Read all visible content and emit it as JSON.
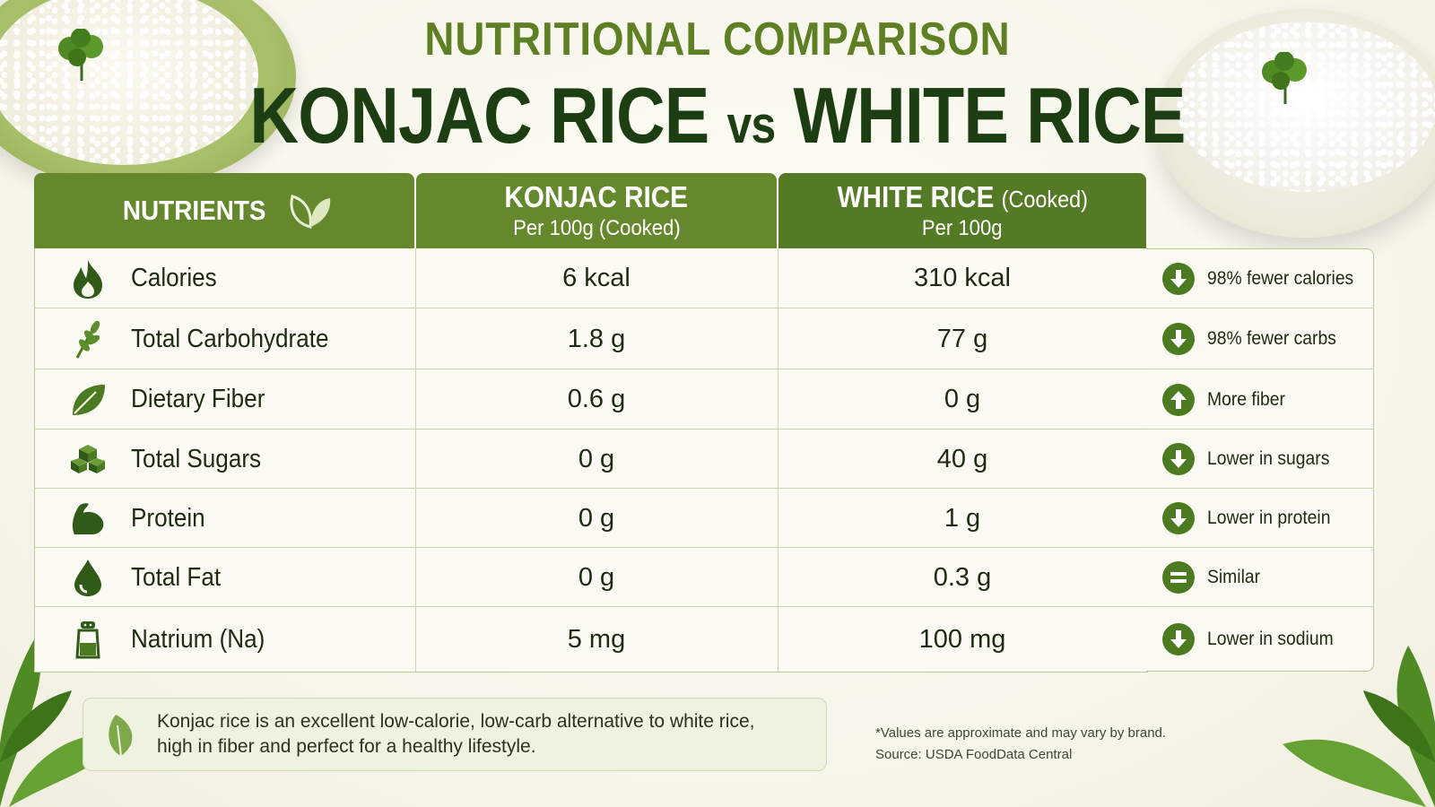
{
  "header": {
    "super_title": "NUTRITIONAL COMPARISON",
    "title_left": "KONJAC RICE",
    "title_vs": "vs",
    "title_right": "WHITE RICE"
  },
  "table": {
    "col_nutrients": "NUTRIENTS",
    "col_konjac": {
      "name": "KONJAC RICE",
      "sub": "Per 100g (Cooked)"
    },
    "col_white": {
      "name": "WHITE RICE",
      "name_note": "(Cooked)",
      "sub": "Per 100g"
    },
    "rows": [
      {
        "icon": "flame-icon",
        "name": "Calories",
        "konjac": "6 kcal",
        "white": "310 kcal",
        "benefit": "98% fewer calories",
        "benefit_icon": "arrow-down-icon"
      },
      {
        "icon": "wheat-icon",
        "name": "Total Carbohydrate",
        "konjac": "1.8 g",
        "white": "77 g",
        "benefit": "98% fewer carbs",
        "benefit_icon": "arrow-down-icon"
      },
      {
        "icon": "leaf-icon",
        "name": "Dietary Fiber",
        "konjac": "0.6 g",
        "white": "0 g",
        "benefit": "More fiber",
        "benefit_icon": "arrow-up-icon"
      },
      {
        "icon": "sugar-cubes-icon",
        "name": "Total Sugars",
        "konjac": "0 g",
        "white": "40 g",
        "benefit": "Lower in sugars",
        "benefit_icon": "arrow-down-icon"
      },
      {
        "icon": "muscle-icon",
        "name": "Protein",
        "konjac": "0 g",
        "white": "1 g",
        "benefit": "Lower in protein",
        "benefit_icon": "arrow-down-icon"
      },
      {
        "icon": "drop-icon",
        "name": "Total Fat",
        "konjac": "0 g",
        "white": "0.3 g",
        "benefit": "Similar",
        "benefit_icon": "equals-icon"
      },
      {
        "icon": "salt-shaker-icon",
        "name": "Natrium (Na)",
        "konjac": "5 mg",
        "white": "100 mg",
        "benefit": "Lower in sodium",
        "benefit_icon": "arrow-down-icon"
      }
    ]
  },
  "footer": {
    "note_line1": "Konjac rice is an excellent low-calorie, low-carb alternative to white rice,",
    "note_line2": "high in fiber and perfect for a healthy lifestyle.",
    "disclaimer": "*Values are approximate and may vary by brand.",
    "source": "Source: USDA FoodData Central"
  },
  "colors": {
    "header_green": "#65882c",
    "header_dark_green": "#557a26",
    "title_dark": "#1d3d12",
    "badge_green": "#4b7a21"
  }
}
